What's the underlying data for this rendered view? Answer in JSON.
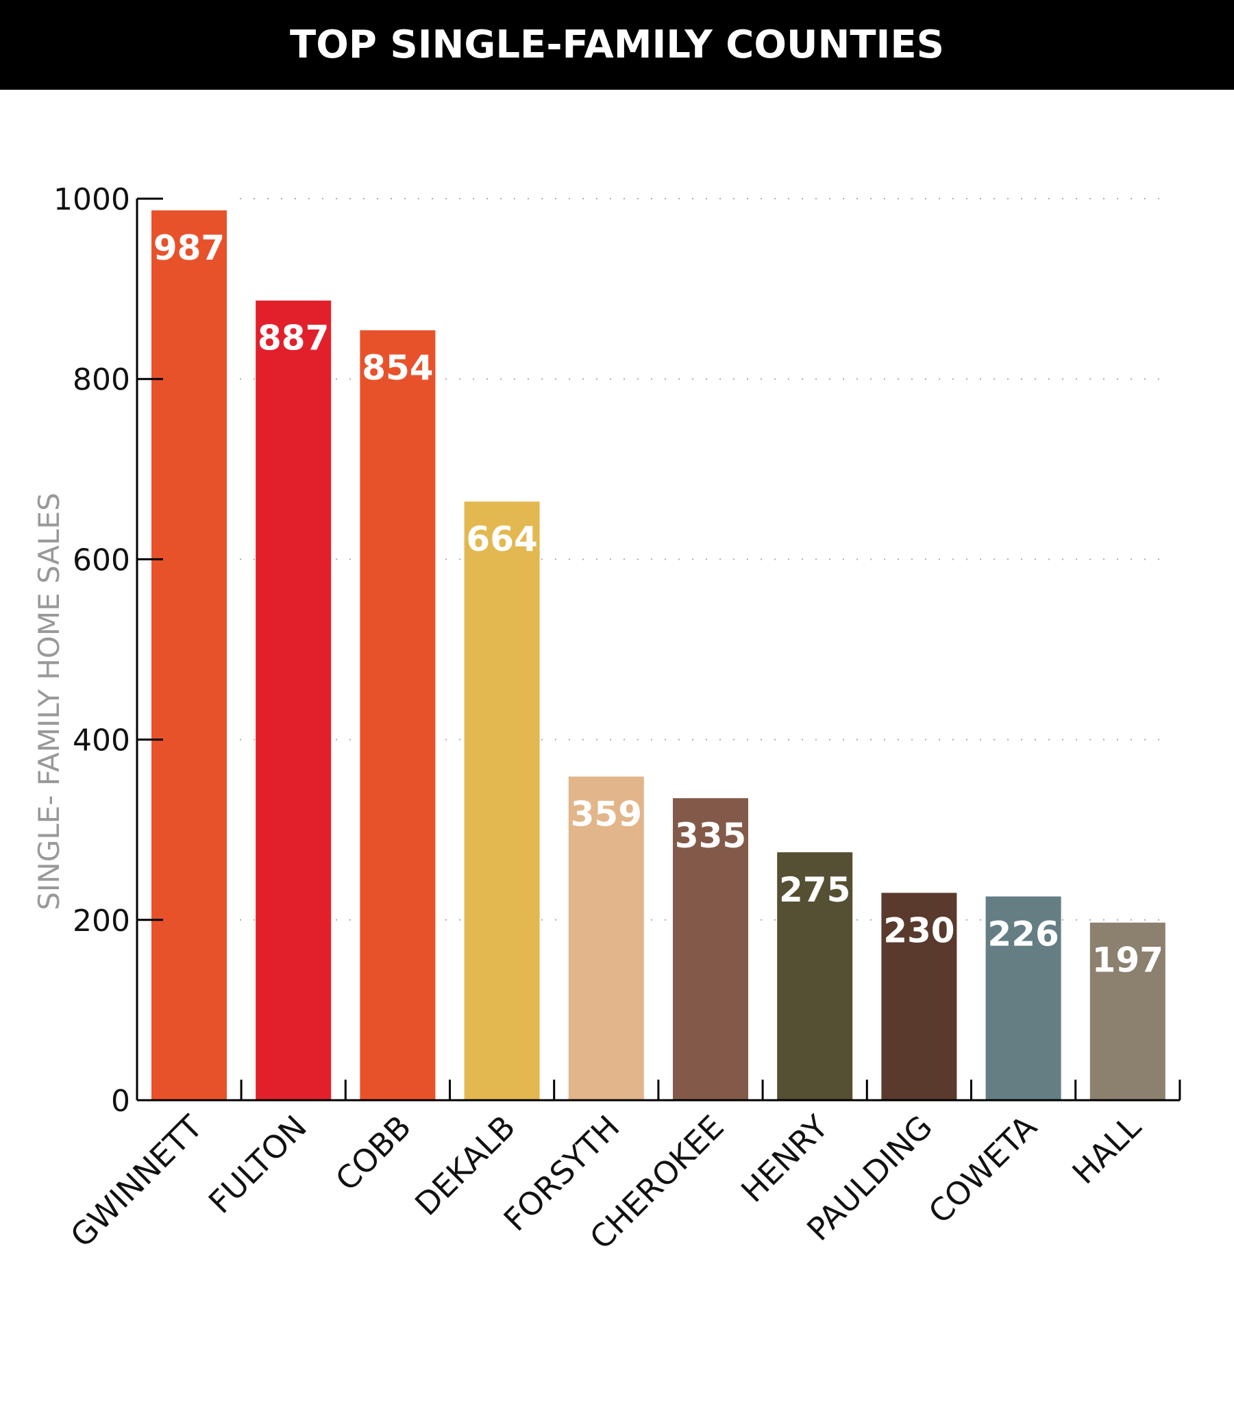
{
  "title": "TOP SINGLE-FAMILY COUNTIES",
  "chart_data": {
    "type": "bar",
    "title": "TOP SINGLE-FAMILY COUNTIES",
    "xlabel": "",
    "ylabel": "SINGLE- FAMILY HOME SALES",
    "ylim": [
      0,
      1000
    ],
    "yticks": [
      "0",
      "200",
      "400",
      "600",
      "800",
      "1000"
    ],
    "grid": true,
    "categories": [
      "GWINNETT",
      "FULTON",
      "COBB",
      "DEKALB",
      "FORSYTH",
      "CHEROKEE",
      "HENRY",
      "PAULDING",
      "COWETA",
      "HALL"
    ],
    "values": [
      987,
      887,
      854,
      664,
      359,
      335,
      275,
      230,
      226,
      197
    ],
    "value_labels": [
      "987",
      "887",
      "854",
      "664",
      "359",
      "335",
      "275",
      "230",
      "226",
      "197"
    ],
    "colors": [
      "#E8522B",
      "#E2202C",
      "#E8522B",
      "#E3B850",
      "#E2B68A",
      "#835A49",
      "#555033",
      "#593A2D",
      "#647E84",
      "#8C806F"
    ]
  }
}
